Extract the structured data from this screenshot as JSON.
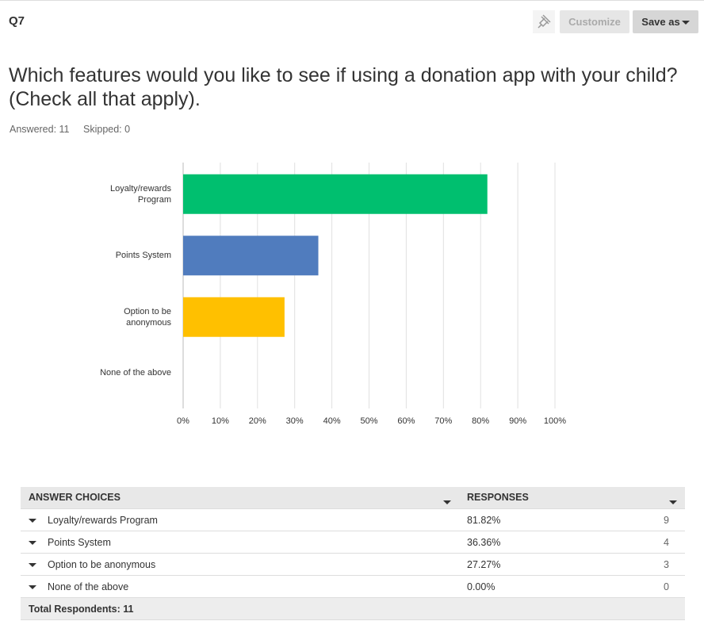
{
  "header": {
    "question": "Q7",
    "customize": "Customize",
    "save_as": "Save as"
  },
  "title": "Which features would you like to see if using a donation app with your child? (Check all that apply).",
  "answered": "Answered: 11",
  "skipped": "Skipped: 0",
  "chart_data": {
    "type": "bar",
    "orientation": "horizontal",
    "categories": [
      "Loyalty/rewards Program",
      "Points System",
      "Option to be anonymous",
      "None of the above"
    ],
    "values": [
      81.82,
      36.36,
      27.27,
      0
    ],
    "colors": [
      "#00bf6f",
      "#507cbe",
      "#ffc000",
      "#6bc8cd"
    ],
    "xlim": [
      0,
      100
    ],
    "xticks": [
      {
        "value": 0,
        "label": "0%"
      },
      {
        "value": 10,
        "label": "10%"
      },
      {
        "value": 20,
        "label": "20%"
      },
      {
        "value": 30,
        "label": "30%"
      },
      {
        "value": 40,
        "label": "40%"
      },
      {
        "value": 50,
        "label": "50%"
      },
      {
        "value": 60,
        "label": "60%"
      },
      {
        "value": 70,
        "label": "70%"
      },
      {
        "value": 80,
        "label": "80%"
      },
      {
        "value": 90,
        "label": "90%"
      },
      {
        "value": 100,
        "label": "100%"
      }
    ],
    "grid": true
  },
  "table": {
    "headers": [
      "ANSWER CHOICES",
      "RESPONSES"
    ],
    "rows": [
      [
        "Loyalty/rewards Program",
        "81.82%",
        9
      ],
      [
        "Points System",
        "36.36%",
        4
      ],
      [
        "Option to be anonymous",
        "27.27%",
        3
      ],
      [
        "None of the above",
        "0.00%",
        0
      ]
    ],
    "total": "Total Respondents: 11"
  }
}
